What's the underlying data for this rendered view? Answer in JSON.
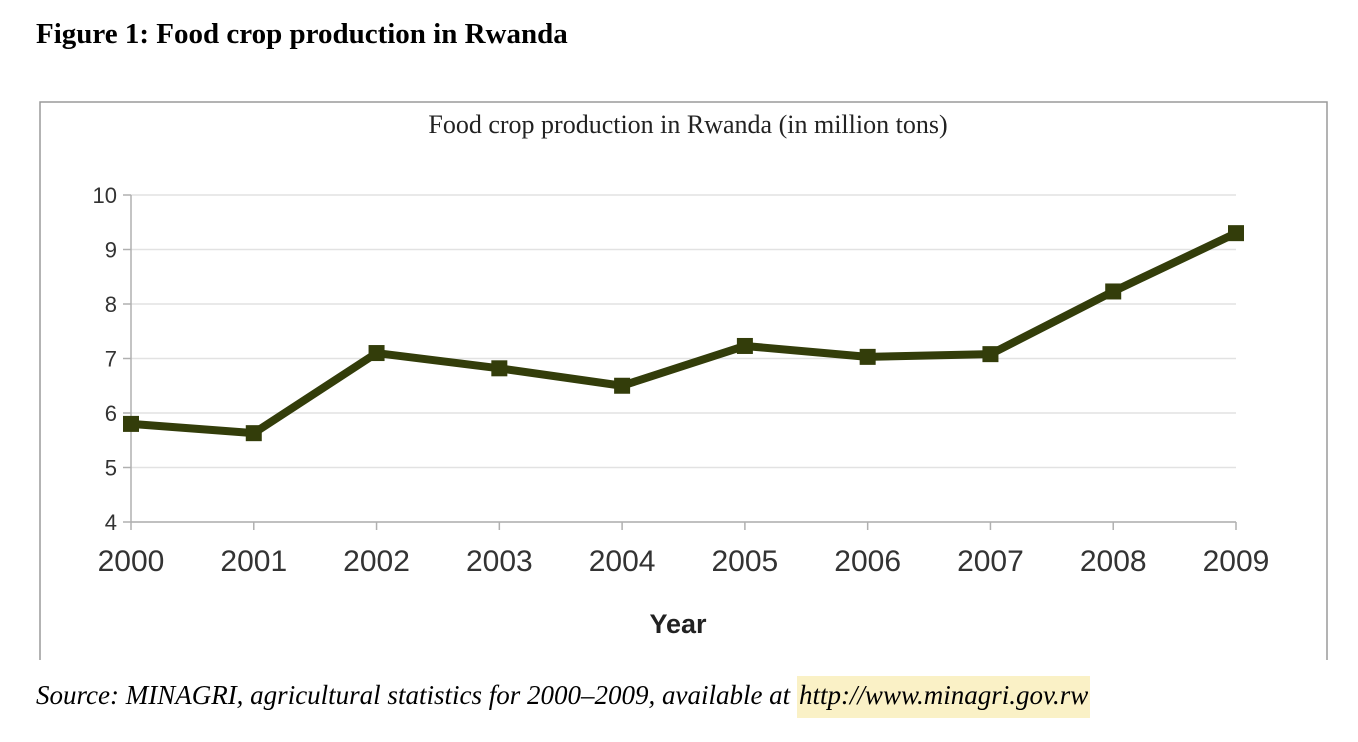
{
  "figure": {
    "caption": "Figure 1: Food crop production in Rwanda"
  },
  "chart_data": {
    "type": "line",
    "title": "Food crop production in Rwanda (in million tons)",
    "xlabel": "Year",
    "ylabel": "",
    "categories": [
      "2000",
      "2001",
      "2002",
      "2003",
      "2004",
      "2005",
      "2006",
      "2007",
      "2008",
      "2009"
    ],
    "series": [
      {
        "name": "Food crop production",
        "values": [
          5.8,
          5.63,
          7.1,
          6.82,
          6.5,
          7.23,
          7.03,
          7.08,
          8.23,
          9.3
        ],
        "color": "#333d0a"
      }
    ],
    "ylim": [
      4,
      10
    ],
    "yticks": [
      4,
      5,
      6,
      7,
      8,
      9,
      10
    ],
    "grid": true,
    "marker": "square"
  },
  "source": {
    "text": "Source: MINAGRI, agricultural statistics for 2000–2009, available at ",
    "link": "http://www.minagri.gov.rw"
  }
}
